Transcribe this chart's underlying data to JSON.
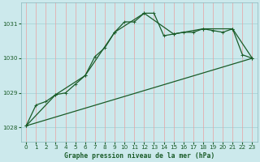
{
  "title": "Graphe pression niveau de la mer (hPa)",
  "background_color": "#cce9ec",
  "plot_bg_color": "#cce9ec",
  "grid_color_h": "#a8d4d8",
  "grid_color_v": "#e8a0a0",
  "line_color": "#1a5c28",
  "xlim": [
    -0.5,
    23.5
  ],
  "ylim": [
    1027.6,
    1031.6
  ],
  "yticks": [
    1028,
    1029,
    1030,
    1031
  ],
  "xticks": [
    0,
    1,
    2,
    3,
    4,
    5,
    6,
    7,
    8,
    9,
    10,
    11,
    12,
    13,
    14,
    15,
    16,
    17,
    18,
    19,
    20,
    21,
    22,
    23
  ],
  "series1_x": [
    0,
    1,
    2,
    3,
    4,
    5,
    6,
    7,
    8,
    9,
    10,
    11,
    12,
    13,
    14,
    15,
    16,
    17,
    18,
    19,
    20,
    21,
    22,
    23
  ],
  "series1_y": [
    1028.05,
    1028.65,
    1028.75,
    1028.95,
    1029.0,
    1029.25,
    1029.5,
    1030.05,
    1030.3,
    1030.75,
    1031.05,
    1031.05,
    1031.3,
    1031.3,
    1030.65,
    1030.7,
    1030.75,
    1030.75,
    1030.85,
    1030.8,
    1030.75,
    1030.85,
    1030.1,
    1030.0
  ],
  "series2_x": [
    0,
    3,
    6,
    9,
    12,
    15,
    18,
    21,
    23
  ],
  "series2_y": [
    1028.05,
    1028.95,
    1029.5,
    1030.75,
    1031.3,
    1030.7,
    1030.85,
    1030.85,
    1030.0
  ],
  "series3_x": [
    0,
    23
  ],
  "series3_y": [
    1028.05,
    1030.0
  ]
}
